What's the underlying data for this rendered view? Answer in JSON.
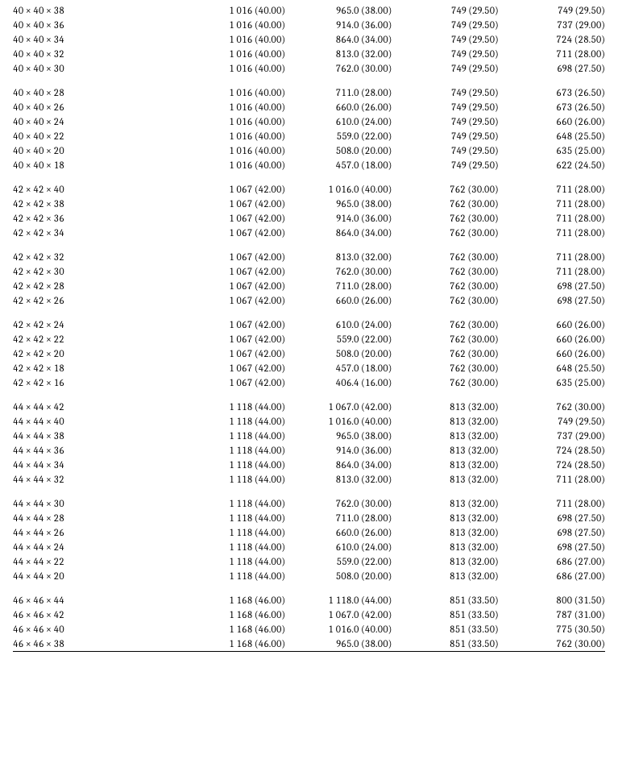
{
  "table": {
    "background_color": "#ffffff",
    "text_color": "#000000",
    "font_family": "Cambria, Georgia, serif",
    "font_size_pt": 9,
    "column_align": [
      "left",
      "right",
      "right",
      "right",
      "right"
    ],
    "column_widths_pct": [
      28,
      18,
      18,
      18,
      18
    ],
    "rule_after_last_row": true,
    "groups": [
      {
        "rows": [
          [
            "40 × 40 × 38",
            "1 016 (40.00)",
            "965.0 (38.00)",
            "749 (29.50)",
            "749 (29.50)"
          ],
          [
            "40 × 40 × 36",
            "1 016 (40.00)",
            "914.0 (36.00)",
            "749 (29.50)",
            "737 (29.00)"
          ],
          [
            "40 × 40 × 34",
            "1 016 (40.00)",
            "864.0 (34.00)",
            "749 (29.50)",
            "724 (28.50)"
          ],
          [
            "40 × 40 × 32",
            "1 016 (40.00)",
            "813.0 (32.00)",
            "749 (29.50)",
            "711 (28.00)"
          ],
          [
            "40 × 40 × 30",
            "1 016 (40.00)",
            "762.0 (30.00)",
            "749 (29.50)",
            "698 (27.50)"
          ]
        ]
      },
      {
        "rows": [
          [
            "40 × 40 × 28",
            "1 016 (40.00)",
            "711.0 (28.00)",
            "749 (29.50)",
            "673 (26.50)"
          ],
          [
            "40 × 40 × 26",
            "1 016 (40.00)",
            "660.0 (26.00)",
            "749 (29.50)",
            "673 (26.50)"
          ],
          [
            "40 × 40 × 24",
            "1 016 (40.00)",
            "610.0 (24.00)",
            "749 (29.50)",
            "660 (26.00)"
          ],
          [
            "40 × 40 × 22",
            "1 016 (40.00)",
            "559.0 (22.00)",
            "749 (29.50)",
            "648 (25.50)"
          ],
          [
            "40 × 40 × 20",
            "1 016 (40.00)",
            "508.0 (20.00)",
            "749 (29.50)",
            "635 (25.00)"
          ],
          [
            "40 × 40 × 18",
            "1 016 (40.00)",
            "457.0 (18.00)",
            "749 (29.50)",
            "622 (24.50)"
          ]
        ]
      },
      {
        "rows": [
          [
            "42 × 42 × 40",
            "1 067 (42.00)",
            "1 016.0 (40.00)",
            "762 (30.00)",
            "711 (28.00)"
          ],
          [
            "42 × 42 × 38",
            "1 067 (42.00)",
            "965.0 (38.00)",
            "762 (30.00)",
            "711 (28.00)"
          ],
          [
            "42 × 42 × 36",
            "1 067 (42.00)",
            "914.0 (36.00)",
            "762 (30.00)",
            "711 (28.00)"
          ],
          [
            "42 × 42 × 34",
            "1 067 (42.00)",
            "864.0 (34.00)",
            "762 (30.00)",
            "711 (28.00)"
          ]
        ]
      },
      {
        "rows": [
          [
            "42 × 42 × 32",
            "1 067 (42.00)",
            "813.0 (32.00)",
            "762 (30.00)",
            "711 (28.00)"
          ],
          [
            "42 × 42 × 30",
            "1 067 (42.00)",
            "762.0 (30.00)",
            "762 (30.00)",
            "711 (28.00)"
          ],
          [
            "42 × 42 × 28",
            "1 067 (42.00)",
            "711.0 (28.00)",
            "762 (30.00)",
            "698 (27.50)"
          ],
          [
            "42 × 42 × 26",
            "1 067 (42.00)",
            "660.0 (26.00)",
            "762 (30.00)",
            "698 (27.50)"
          ]
        ]
      },
      {
        "rows": [
          [
            "42 × 42 × 24",
            "1 067 (42.00)",
            "610.0 (24.00)",
            "762 (30.00)",
            "660 (26.00)"
          ],
          [
            "42 × 42 × 22",
            "1 067 (42.00)",
            "559.0 (22.00)",
            "762 (30.00)",
            "660 (26.00)"
          ],
          [
            "42 × 42 × 20",
            "1 067 (42.00)",
            "508.0 (20.00)",
            "762 (30.00)",
            "660 (26.00)"
          ],
          [
            "42 × 42 × 18",
            "1 067 (42.00)",
            "457.0 (18.00)",
            "762 (30.00)",
            "648 (25.50)"
          ],
          [
            "42 × 42 × 16",
            "1 067 (42.00)",
            "406.4 (16.00)",
            "762 (30.00)",
            "635 (25.00)"
          ]
        ]
      },
      {
        "rows": [
          [
            "44 × 44 × 42",
            "1 118 (44.00)",
            "1 067.0 (42.00)",
            "813 (32.00)",
            "762 (30.00)"
          ],
          [
            "44 × 44 × 40",
            "1 118 (44.00)",
            "1 016.0 (40.00)",
            "813 (32.00)",
            "749 (29.50)"
          ],
          [
            "44 × 44 × 38",
            "1 118 (44.00)",
            "965.0 (38.00)",
            "813 (32.00)",
            "737 (29.00)"
          ],
          [
            "44 × 44 × 36",
            "1 118 (44.00)",
            "914.0 (36.00)",
            "813 (32.00)",
            "724 (28.50)"
          ],
          [
            "44 × 44 × 34",
            "1 118 (44.00)",
            "864.0 (34.00)",
            "813 (32.00)",
            "724 (28.50)"
          ],
          [
            "44 × 44 × 32",
            "1 118 (44.00)",
            "813.0 (32.00)",
            "813 (32.00)",
            "711 (28.00)"
          ]
        ]
      },
      {
        "rows": [
          [
            "44 × 44 × 30",
            "1 118 (44.00)",
            "762.0 (30.00)",
            "813 (32.00)",
            "711 (28.00)"
          ],
          [
            "44 × 44 × 28",
            "1 118 (44.00)",
            "711.0 (28.00)",
            "813 (32.00)",
            "698 (27.50)"
          ],
          [
            "44 × 44 × 26",
            "1 118 (44.00)",
            "660.0 (26.00)",
            "813 (32.00)",
            "698 (27.50)"
          ],
          [
            "44 × 44 × 24",
            "1 118 (44.00)",
            "610.0 (24.00)",
            "813 (32.00)",
            "698 (27.50)"
          ],
          [
            "44 × 44 × 22",
            "1 118 (44.00)",
            "559.0 (22.00)",
            "813 (32.00)",
            "686 (27.00)"
          ],
          [
            "44 × 44 × 20",
            "1 118 (44.00)",
            "508.0 (20.00)",
            "813 (32.00)",
            "686 (27.00)"
          ]
        ]
      },
      {
        "rows": [
          [
            "46 × 46 × 44",
            "1 168 (46.00)",
            "1 118.0 (44.00)",
            "851 (33.50)",
            "800 (31.50)"
          ],
          [
            "46 × 46 × 42",
            "1 168 (46.00)",
            "1 067.0 (42.00)",
            "851 (33.50)",
            "787 (31.00)"
          ],
          [
            "46 × 46 × 40",
            "1 168 (46.00)",
            "1 016.0 (40.00)",
            "851 (33.50)",
            "775 (30.50)"
          ],
          [
            "46 × 46 × 38",
            "1 168 (46.00)",
            "965.0 (38.00)",
            "851 (33.50)",
            "762 (30.00)"
          ]
        ]
      }
    ]
  }
}
